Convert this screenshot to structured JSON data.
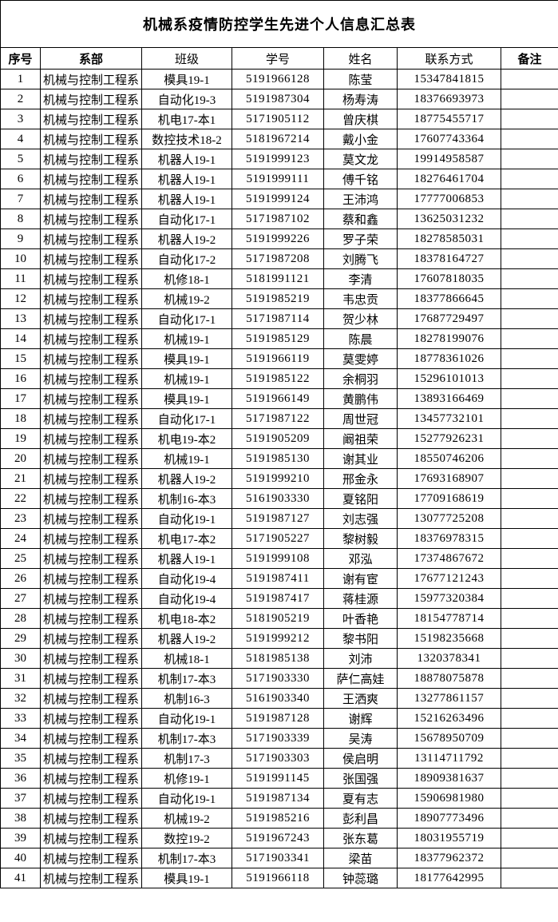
{
  "title": "机械系疫情防控学生先进个人信息汇总表",
  "table": {
    "headers": [
      {
        "key": "no",
        "label": "序号",
        "bold": true
      },
      {
        "key": "dept",
        "label": "系部",
        "bold": true
      },
      {
        "key": "class",
        "label": "班级",
        "bold": false
      },
      {
        "key": "student_id",
        "label": "学号",
        "bold": false
      },
      {
        "key": "name",
        "label": "姓名",
        "bold": false
      },
      {
        "key": "phone",
        "label": "联系方式",
        "bold": false
      },
      {
        "key": "remark",
        "label": "备注",
        "bold": true
      }
    ],
    "rows": [
      {
        "no": "1",
        "dept": "机械与控制工程系",
        "class": "模具19-1",
        "student_id": "5191966128",
        "name": "陈莹",
        "phone": "15347841815",
        "remark": ""
      },
      {
        "no": "2",
        "dept": "机械与控制工程系",
        "class": "自动化19-3",
        "student_id": "5191987304",
        "name": "杨寿涛",
        "phone": "18376693973",
        "remark": ""
      },
      {
        "no": "3",
        "dept": "机械与控制工程系",
        "class": "机电17-本1",
        "student_id": "5171905112",
        "name": "曾庆棋",
        "phone": "18775455717",
        "remark": ""
      },
      {
        "no": "4",
        "dept": "机械与控制工程系",
        "class": "数控技术18-2",
        "student_id": "5181967214",
        "name": "戴小金",
        "phone": "17607743364",
        "remark": ""
      },
      {
        "no": "5",
        "dept": "机械与控制工程系",
        "class": "机器人19-1",
        "student_id": "5191999123",
        "name": "莫文龙",
        "phone": "19914958587",
        "remark": ""
      },
      {
        "no": "6",
        "dept": "机械与控制工程系",
        "class": "机器人19-1",
        "student_id": "5191999111",
        "name": "傅千铭",
        "phone": "18276461704",
        "remark": ""
      },
      {
        "no": "7",
        "dept": "机械与控制工程系",
        "class": "机器人19-1",
        "student_id": "5191999124",
        "name": "王沛鸿",
        "phone": "17777006853",
        "remark": ""
      },
      {
        "no": "8",
        "dept": "机械与控制工程系",
        "class": "自动化17-1",
        "student_id": "5171987102",
        "name": "蔡和鑫",
        "phone": "13625031232",
        "remark": ""
      },
      {
        "no": "9",
        "dept": "机械与控制工程系",
        "class": "机器人19-2",
        "student_id": "5191999226",
        "name": "罗子荣",
        "phone": "18278585031",
        "remark": ""
      },
      {
        "no": "10",
        "dept": "机械与控制工程系",
        "class": "自动化17-2",
        "student_id": "5171987208",
        "name": "刘腾飞",
        "phone": "18378164727",
        "remark": ""
      },
      {
        "no": "11",
        "dept": "机械与控制工程系",
        "class": "机修18-1",
        "student_id": "5181991121",
        "name": "李清",
        "phone": "17607818035",
        "remark": ""
      },
      {
        "no": "12",
        "dept": "机械与控制工程系",
        "class": "机械19-2",
        "student_id": "5191985219",
        "name": "韦忠贡",
        "phone": "18377866645",
        "remark": ""
      },
      {
        "no": "13",
        "dept": "机械与控制工程系",
        "class": "自动化17-1",
        "student_id": "5171987114",
        "name": "贺少林",
        "phone": "17687729497",
        "remark": ""
      },
      {
        "no": "14",
        "dept": "机械与控制工程系",
        "class": "机械19-1",
        "student_id": "5191985129",
        "name": "陈晨",
        "phone": "18278199076",
        "remark": ""
      },
      {
        "no": "15",
        "dept": "机械与控制工程系",
        "class": "模具19-1",
        "student_id": "5191966119",
        "name": "莫雯婷",
        "phone": "18778361026",
        "remark": ""
      },
      {
        "no": "16",
        "dept": "机械与控制工程系",
        "class": "机械19-1",
        "student_id": "5191985122",
        "name": "余桐羽",
        "phone": "15296101013",
        "remark": ""
      },
      {
        "no": "17",
        "dept": "机械与控制工程系",
        "class": "模具19-1",
        "student_id": "5191966149",
        "name": "黄鹏伟",
        "phone": "13893166469",
        "remark": ""
      },
      {
        "no": "18",
        "dept": "机械与控制工程系",
        "class": "自动化17-1",
        "student_id": "5171987122",
        "name": "周世冠",
        "phone": "13457732101",
        "remark": ""
      },
      {
        "no": "19",
        "dept": "机械与控制工程系",
        "class": "机电19-本2",
        "student_id": "5191905209",
        "name": "阚祖荣",
        "phone": "15277926231",
        "remark": ""
      },
      {
        "no": "20",
        "dept": "机械与控制工程系",
        "class": "机械19-1",
        "student_id": "5191985130",
        "name": "谢其业",
        "phone": "18550746206",
        "remark": ""
      },
      {
        "no": "21",
        "dept": "机械与控制工程系",
        "class": "机器人19-2",
        "student_id": "5191999210",
        "name": "邢金永",
        "phone": "17693168907",
        "remark": ""
      },
      {
        "no": "22",
        "dept": "机械与控制工程系",
        "class": "机制16-本3",
        "student_id": "5161903330",
        "name": "夏铭阳",
        "phone": "17709168619",
        "remark": ""
      },
      {
        "no": "23",
        "dept": "机械与控制工程系",
        "class": "自动化19-1",
        "student_id": "5191987127",
        "name": "刘志强",
        "phone": "13077725208",
        "remark": ""
      },
      {
        "no": "24",
        "dept": "机械与控制工程系",
        "class": "机电17-本2",
        "student_id": "5171905227",
        "name": "黎树毅",
        "phone": "18376978315",
        "remark": ""
      },
      {
        "no": "25",
        "dept": "机械与控制工程系",
        "class": "机器人19-1",
        "student_id": "5191999108",
        "name": "邓泓",
        "phone": "17374867672",
        "remark": ""
      },
      {
        "no": "26",
        "dept": "机械与控制工程系",
        "class": "自动化19-4",
        "student_id": "5191987411",
        "name": "谢有宦",
        "phone": "17677121243",
        "remark": ""
      },
      {
        "no": "27",
        "dept": "机械与控制工程系",
        "class": "自动化19-4",
        "student_id": "5191987417",
        "name": "蒋桂源",
        "phone": "15977320384",
        "remark": ""
      },
      {
        "no": "28",
        "dept": "机械与控制工程系",
        "class": "机电18-本2",
        "student_id": "5181905219",
        "name": "叶香艳",
        "phone": "18154778714",
        "remark": ""
      },
      {
        "no": "29",
        "dept": "机械与控制工程系",
        "class": "机器人19-2",
        "student_id": "5191999212",
        "name": "黎书阳",
        "phone": "15198235668",
        "remark": ""
      },
      {
        "no": "30",
        "dept": "机械与控制工程系",
        "class": "机械18-1",
        "student_id": "5181985138",
        "name": "刘沛",
        "phone": "1320378341",
        "remark": ""
      },
      {
        "no": "31",
        "dept": "机械与控制工程系",
        "class": "机制17-本3",
        "student_id": "5171903330",
        "name": "萨仁高娃",
        "phone": "18878075878",
        "remark": ""
      },
      {
        "no": "32",
        "dept": "机械与控制工程系",
        "class": "机制16-3",
        "student_id": "5161903340",
        "name": "王洒爽",
        "phone": "13277861157",
        "remark": ""
      },
      {
        "no": "33",
        "dept": "机械与控制工程系",
        "class": "自动化19-1",
        "student_id": "5191987128",
        "name": "谢辉",
        "phone": "15216263496",
        "remark": ""
      },
      {
        "no": "34",
        "dept": "机械与控制工程系",
        "class": "机制17-本3",
        "student_id": "5171903339",
        "name": "吴涛",
        "phone": "15678950709",
        "remark": ""
      },
      {
        "no": "35",
        "dept": "机械与控制工程系",
        "class": "机制17-3",
        "student_id": "5171903303",
        "name": "侯启明",
        "phone": "13114711792",
        "remark": ""
      },
      {
        "no": "36",
        "dept": "机械与控制工程系",
        "class": "机修19-1",
        "student_id": "5191991145",
        "name": "张国强",
        "phone": "18909381637",
        "remark": ""
      },
      {
        "no": "37",
        "dept": "机械与控制工程系",
        "class": "自动化19-1",
        "student_id": "5191987134",
        "name": "夏有志",
        "phone": "15906981980",
        "remark": ""
      },
      {
        "no": "38",
        "dept": "机械与控制工程系",
        "class": "机械19-2",
        "student_id": "5191985216",
        "name": "彭利昌",
        "phone": "18907773496",
        "remark": ""
      },
      {
        "no": "39",
        "dept": "机械与控制工程系",
        "class": "数控19-2",
        "student_id": "5191967243",
        "name": "张东葛",
        "phone": "18031955719",
        "remark": ""
      },
      {
        "no": "40",
        "dept": "机械与控制工程系",
        "class": "机制17-本3",
        "student_id": "5171903341",
        "name": "梁苗",
        "phone": "18377962372",
        "remark": ""
      },
      {
        "no": "41",
        "dept": "机械与控制工程系",
        "class": "模具19-1",
        "student_id": "5191966118",
        "name": "钟蕊璐",
        "phone": "18177642995",
        "remark": ""
      }
    ]
  }
}
